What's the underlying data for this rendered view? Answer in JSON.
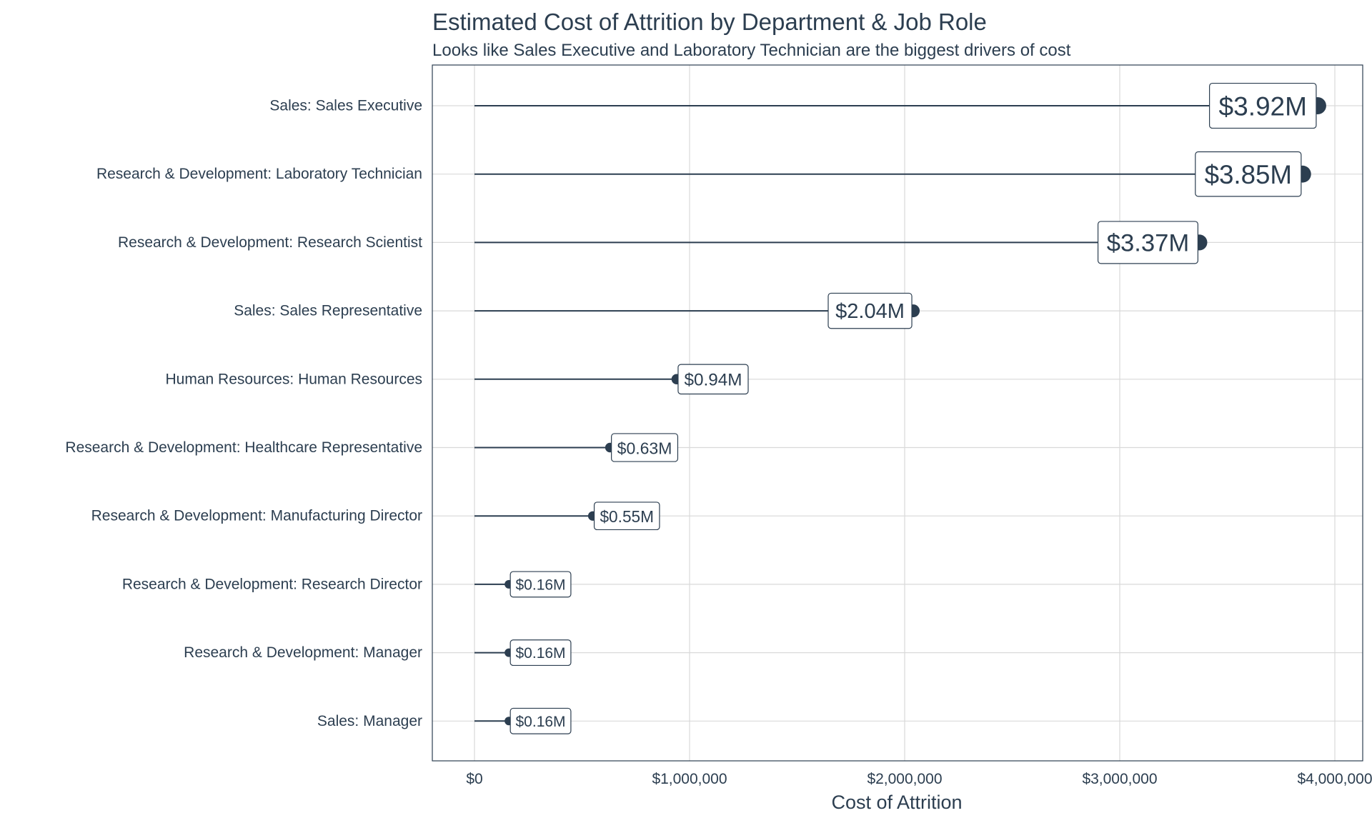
{
  "chart_data": {
    "type": "lollipop",
    "title": "Estimated Cost of Attrition by Department & Job Role",
    "subtitle": "Looks like Sales Executive and Laboratory Technician are the biggest drivers of cost",
    "xlabel": "Cost of Attrition",
    "ylabel": "",
    "xlim": [
      0,
      4000000
    ],
    "x_ticks": [
      0,
      1000000,
      2000000,
      3000000,
      4000000
    ],
    "x_tick_labels": [
      "$0",
      "$1,000,000",
      "$2,000,000",
      "$3,000,000",
      "$4,000,000"
    ],
    "grid": true,
    "color": "#2c3e50",
    "categories": [
      "Sales: Sales Executive",
      "Research & Development: Laboratory Technician",
      "Research & Development: Research Scientist",
      "Sales: Sales Representative",
      "Human Resources: Human Resources",
      "Research & Development: Healthcare Representative",
      "Research & Development: Manufacturing Director",
      "Research & Development: Research Director",
      "Research & Development: Manager",
      "Sales: Manager"
    ],
    "values": [
      3920000,
      3850000,
      3370000,
      2040000,
      940000,
      630000,
      550000,
      160000,
      160000,
      160000
    ],
    "value_labels": [
      "$3.92M",
      "$3.85M",
      "$3.37M",
      "$2.04M",
      "$0.94M",
      "$0.63M",
      "$0.55M",
      "$0.16M",
      "$0.16M",
      "$0.16M"
    ]
  }
}
